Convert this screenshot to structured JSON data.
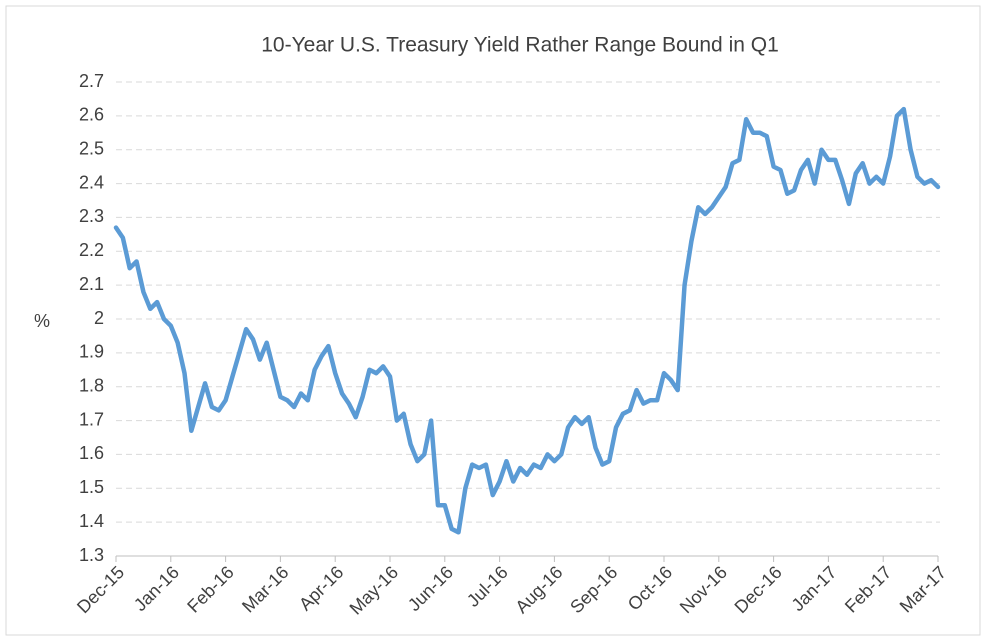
{
  "chart_data": {
    "type": "line",
    "title": "10-Year U.S. Treasury Yield Rather Range Bound in Q1",
    "y_label": "%",
    "categories": [
      "Dec-15",
      null,
      null,
      null,
      null,
      null,
      null,
      null,
      "Jan-16",
      null,
      null,
      null,
      null,
      null,
      null,
      null,
      "Feb-16",
      null,
      null,
      null,
      null,
      null,
      null,
      null,
      "Mar-16",
      null,
      null,
      null,
      null,
      null,
      null,
      null,
      "Apr-16",
      null,
      null,
      null,
      null,
      null,
      null,
      null,
      "May-16",
      null,
      null,
      null,
      null,
      null,
      null,
      null,
      "Jun-16",
      null,
      null,
      null,
      null,
      null,
      null,
      null,
      "Jul-16",
      null,
      null,
      null,
      null,
      null,
      null,
      null,
      "Aug-16",
      null,
      null,
      null,
      null,
      null,
      null,
      null,
      "Sep-16",
      null,
      null,
      null,
      null,
      null,
      null,
      null,
      "Oct-16",
      null,
      null,
      null,
      null,
      null,
      null,
      null,
      "Nov-16",
      null,
      null,
      null,
      null,
      null,
      null,
      null,
      "Dec-16",
      null,
      null,
      null,
      null,
      null,
      null,
      null,
      "Jan-17",
      null,
      null,
      null,
      null,
      null,
      null,
      null,
      "Feb-17",
      null,
      null,
      null,
      null,
      null,
      null,
      null,
      "Mar-17"
    ],
    "series": [
      {
        "name": "10-Year U.S. Treasury Yield",
        "color": "#5b9bd5",
        "values": [
          2.27,
          2.24,
          2.15,
          2.17,
          2.08,
          2.03,
          2.05,
          2.0,
          1.98,
          1.93,
          1.84,
          1.67,
          1.74,
          1.81,
          1.74,
          1.73,
          1.76,
          1.83,
          1.9,
          1.97,
          1.94,
          1.88,
          1.93,
          1.85,
          1.77,
          1.76,
          1.74,
          1.78,
          1.76,
          1.85,
          1.89,
          1.92,
          1.84,
          1.78,
          1.75,
          1.71,
          1.77,
          1.85,
          1.84,
          1.86,
          1.83,
          1.7,
          1.72,
          1.63,
          1.58,
          1.6,
          1.7,
          1.45,
          1.45,
          1.38,
          1.37,
          1.5,
          1.57,
          1.56,
          1.57,
          1.48,
          1.52,
          1.58,
          1.52,
          1.56,
          1.54,
          1.57,
          1.56,
          1.6,
          1.58,
          1.6,
          1.68,
          1.71,
          1.69,
          1.71,
          1.62,
          1.57,
          1.58,
          1.68,
          1.72,
          1.73,
          1.79,
          1.75,
          1.76,
          1.76,
          1.84,
          1.82,
          1.79,
          2.1,
          2.23,
          2.33,
          2.31,
          2.33,
          2.36,
          2.39,
          2.46,
          2.47,
          2.59,
          2.55,
          2.55,
          2.54,
          2.45,
          2.44,
          2.37,
          2.38,
          2.44,
          2.47,
          2.4,
          2.5,
          2.47,
          2.47,
          2.41,
          2.34,
          2.43,
          2.46,
          2.4,
          2.42,
          2.4,
          2.48,
          2.6,
          2.62,
          2.5,
          2.42,
          2.4,
          2.41,
          2.39
        ]
      }
    ],
    "ylim": [
      1.3,
      2.7
    ],
    "yticks": [
      1.3,
      1.4,
      1.5,
      1.6,
      1.7,
      1.8,
      1.9,
      2,
      2.1,
      2.2,
      2.3,
      2.4,
      2.5,
      2.6,
      2.7
    ],
    "grid": true
  }
}
